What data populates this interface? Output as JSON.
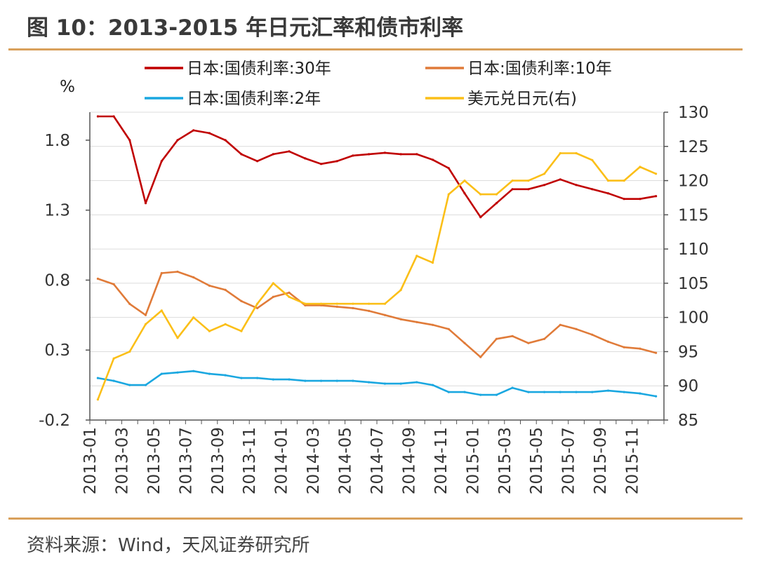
{
  "header": {
    "title": "图 10：2013-2015 年日元汇率和债市利率"
  },
  "footer": {
    "source": "资料来源：Wind，天风证券研究所"
  },
  "chart_data": {
    "type": "line",
    "left_axis_unit": "%",
    "left_axis": {
      "ylim": [
        -0.2,
        2.0
      ],
      "ticks": [
        "-0.2",
        "0.3",
        "0.8",
        "1.3",
        "1.8"
      ],
      "tick_values": [
        -0.2,
        0.3,
        0.8,
        1.3,
        1.8
      ]
    },
    "right_axis": {
      "ylim": [
        85,
        130
      ],
      "ticks": [
        "85",
        "90",
        "95",
        "100",
        "105",
        "110",
        "115",
        "120",
        "125",
        "130"
      ],
      "tick_values": [
        85,
        90,
        95,
        100,
        105,
        110,
        115,
        120,
        125,
        130
      ]
    },
    "x_tick_labels": [
      "2013-01",
      "2013-03",
      "2013-05",
      "2013-07",
      "2013-09",
      "2013-11",
      "2014-01",
      "2014-03",
      "2014-05",
      "2014-07",
      "2014-09",
      "2014-11",
      "2015-01",
      "2015-03",
      "2015-05",
      "2015-07",
      "2015-09",
      "2015-11"
    ],
    "legend_placement": "top",
    "grid": "horizontal",
    "series": [
      {
        "name": "日本:国债利率:30年",
        "axis": "left",
        "color": "#c00000",
        "x": [
          "2013-01",
          "2013-02",
          "2013-03",
          "2013-04",
          "2013-05",
          "2013-06",
          "2013-07",
          "2013-08",
          "2013-09",
          "2013-10",
          "2013-11",
          "2013-12",
          "2014-01",
          "2014-02",
          "2014-03",
          "2014-04",
          "2014-05",
          "2014-06",
          "2014-07",
          "2014-08",
          "2014-09",
          "2014-10",
          "2014-11",
          "2014-12",
          "2015-01",
          "2015-02",
          "2015-03",
          "2015-04",
          "2015-05",
          "2015-06",
          "2015-07",
          "2015-08",
          "2015-09",
          "2015-10",
          "2015-11",
          "2015-12"
        ],
        "values": [
          1.97,
          1.97,
          1.8,
          1.35,
          1.65,
          1.8,
          1.87,
          1.85,
          1.8,
          1.7,
          1.65,
          1.7,
          1.72,
          1.67,
          1.63,
          1.65,
          1.69,
          1.7,
          1.71,
          1.7,
          1.7,
          1.66,
          1.6,
          1.42,
          1.25,
          1.35,
          1.45,
          1.45,
          1.48,
          1.52,
          1.48,
          1.45,
          1.42,
          1.38,
          1.38,
          1.4
        ]
      },
      {
        "name": "日本:国债利率:10年",
        "axis": "left",
        "color": "#e07b39",
        "x": [
          "2013-01",
          "2013-02",
          "2013-03",
          "2013-04",
          "2013-05",
          "2013-06",
          "2013-07",
          "2013-08",
          "2013-09",
          "2013-10",
          "2013-11",
          "2013-12",
          "2014-01",
          "2014-02",
          "2014-03",
          "2014-04",
          "2014-05",
          "2014-06",
          "2014-07",
          "2014-08",
          "2014-09",
          "2014-10",
          "2014-11",
          "2014-12",
          "2015-01",
          "2015-02",
          "2015-03",
          "2015-04",
          "2015-05",
          "2015-06",
          "2015-07",
          "2015-08",
          "2015-09",
          "2015-10",
          "2015-11",
          "2015-12"
        ],
        "values": [
          0.81,
          0.77,
          0.63,
          0.55,
          0.85,
          0.86,
          0.82,
          0.76,
          0.73,
          0.65,
          0.6,
          0.68,
          0.71,
          0.62,
          0.62,
          0.61,
          0.6,
          0.58,
          0.55,
          0.52,
          0.5,
          0.48,
          0.45,
          0.35,
          0.25,
          0.38,
          0.4,
          0.35,
          0.38,
          0.48,
          0.45,
          0.41,
          0.36,
          0.32,
          0.31,
          0.28
        ]
      },
      {
        "name": "日本:国债利率:2年",
        "axis": "left",
        "color": "#1aa7e0",
        "x": [
          "2013-01",
          "2013-02",
          "2013-03",
          "2013-04",
          "2013-05",
          "2013-06",
          "2013-07",
          "2013-08",
          "2013-09",
          "2013-10",
          "2013-11",
          "2013-12",
          "2014-01",
          "2014-02",
          "2014-03",
          "2014-04",
          "2014-05",
          "2014-06",
          "2014-07",
          "2014-08",
          "2014-09",
          "2014-10",
          "2014-11",
          "2014-12",
          "2015-01",
          "2015-02",
          "2015-03",
          "2015-04",
          "2015-05",
          "2015-06",
          "2015-07",
          "2015-08",
          "2015-09",
          "2015-10",
          "2015-11",
          "2015-12"
        ],
        "values": [
          0.1,
          0.08,
          0.05,
          0.05,
          0.13,
          0.14,
          0.15,
          0.13,
          0.12,
          0.1,
          0.1,
          0.09,
          0.09,
          0.08,
          0.08,
          0.08,
          0.08,
          0.07,
          0.06,
          0.06,
          0.07,
          0.05,
          0.0,
          0.0,
          -0.02,
          -0.02,
          0.03,
          0.0,
          0.0,
          0.0,
          0.0,
          0.0,
          0.01,
          0.0,
          -0.01,
          -0.03
        ]
      },
      {
        "name": "美元兑日元(右)",
        "axis": "right",
        "color": "#fbbf18",
        "x": [
          "2013-01",
          "2013-02",
          "2013-03",
          "2013-04",
          "2013-05",
          "2013-06",
          "2013-07",
          "2013-08",
          "2013-09",
          "2013-10",
          "2013-11",
          "2013-12",
          "2014-01",
          "2014-02",
          "2014-03",
          "2014-04",
          "2014-05",
          "2014-06",
          "2014-07",
          "2014-08",
          "2014-09",
          "2014-10",
          "2014-11",
          "2014-12",
          "2015-01",
          "2015-02",
          "2015-03",
          "2015-04",
          "2015-05",
          "2015-06",
          "2015-07",
          "2015-08",
          "2015-09",
          "2015-10",
          "2015-11",
          "2015-12"
        ],
        "values": [
          88,
          94,
          95,
          99,
          101,
          97,
          100,
          98,
          99,
          98,
          102,
          105,
          103,
          102,
          102,
          102,
          102,
          102,
          102,
          104,
          109,
          108,
          118,
          120,
          118,
          118,
          120,
          120,
          121,
          124,
          124,
          123,
          120,
          120,
          122,
          121
        ]
      }
    ]
  }
}
